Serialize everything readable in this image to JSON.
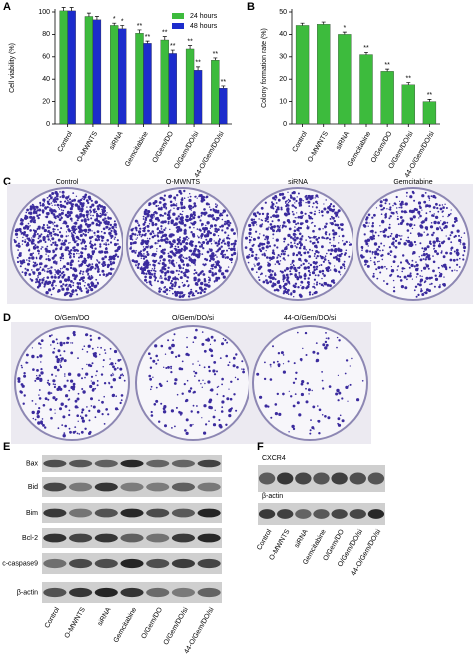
{
  "chart_data": [
    {
      "type": "bar",
      "panel": "A",
      "ylabel": "Cell viability (%)",
      "categories": [
        "Control",
        "O-MWNTS",
        "siRNA",
        "Gemcitabine",
        "O/Gem/DO",
        "O/Gem/DO/si",
        "44-O/Gem/DO/si"
      ],
      "series": [
        {
          "name": "24 hours",
          "color": "#3dbb3d",
          "values": [
            101,
            96,
            88,
            81,
            75,
            67,
            57
          ],
          "errors": [
            3,
            3,
            2,
            3,
            3,
            3,
            2
          ],
          "significance": [
            null,
            null,
            "*",
            "**",
            "**",
            "**",
            "**"
          ]
        },
        {
          "name": "48 hours",
          "color": "#1c2ccc",
          "values": [
            101,
            93,
            85,
            72,
            63,
            48,
            32
          ],
          "errors": [
            3,
            3,
            3,
            2,
            3,
            3,
            2
          ],
          "significance": [
            null,
            null,
            "*",
            "**",
            "**",
            "**",
            "**"
          ]
        }
      ],
      "ylim": [
        0,
        100
      ],
      "yticks": [
        0,
        20,
        40,
        60,
        80,
        100
      ],
      "legend": "upper right"
    },
    {
      "type": "bar",
      "panel": "B",
      "ylabel": "Colony formation rate (%)",
      "categories": [
        "Control",
        "O-MWNTS",
        "siRNA",
        "Gemcitabine",
        "O/Gem/DO",
        "O/Gem/DO/si",
        "44-O/Gem/DO/si"
      ],
      "series": [
        {
          "color": "#3dbb3d",
          "values": [
            44,
            44.5,
            40,
            31,
            23.5,
            17.5,
            10
          ],
          "errors": [
            1,
            1,
            1,
            1,
            1,
            1,
            1
          ],
          "significance": [
            null,
            null,
            "*",
            "**",
            "**",
            "**",
            "**"
          ]
        }
      ],
      "ylim": [
        0,
        50
      ],
      "yticks": [
        0,
        10,
        20,
        30,
        40,
        50
      ]
    }
  ],
  "panels": [
    {
      "label": "C",
      "plates": [
        "Control",
        "O-MWNTS",
        "siRNA",
        "Gemcitabine"
      ]
    },
    {
      "label": "D",
      "plates": [
        "O/Gem/DO",
        "O/Gem/DO/si",
        "44-O/Gem/DO/si"
      ]
    },
    {
      "label": "E",
      "proteins": [
        "Bax",
        "Bid",
        "Bim",
        "Bcl-2",
        "c-caspase9",
        "β-actin"
      ],
      "lanes": [
        "Control",
        "O-MWNTS",
        "siRNA",
        "Gemcitabine",
        "O/Gem/DO",
        "O/Gem/DO/si",
        "44-O/Gem/DO/si"
      ]
    },
    {
      "label": "F",
      "proteins": [
        "CXCR4",
        "β-actin"
      ],
      "lanes": [
        "Control",
        "O-MWNTS",
        "siRNA",
        "Gemcitabine",
        "O/Gem/DO",
        "O/Gem/DO/si",
        "44-O/Gem/DO/si"
      ]
    }
  ]
}
